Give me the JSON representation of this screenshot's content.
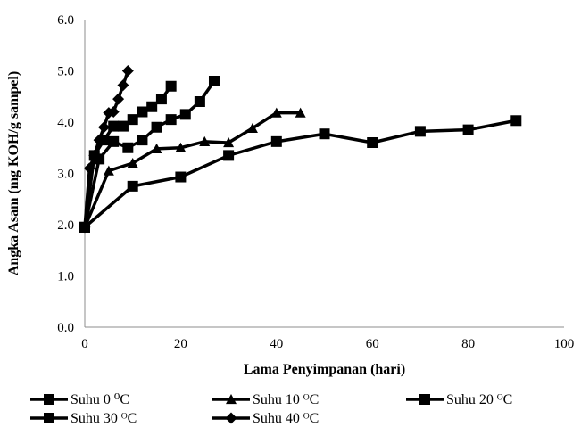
{
  "chart_data": {
    "type": "line",
    "title": "",
    "xlabel": "Lama Penyimpanan (hari)",
    "ylabel": "Angka Asam (mg KOH/g sampel)",
    "xlim": [
      0,
      100
    ],
    "ylim": [
      0,
      6
    ],
    "xticks": [
      "0",
      "20",
      "40",
      "60",
      "80",
      "100"
    ],
    "yticks": [
      "0.0",
      "1.0",
      "2.0",
      "3.0",
      "4.0",
      "5.0",
      "6.0"
    ],
    "grid": false,
    "legend_position": "bottom",
    "line_color": "#000000",
    "series": [
      {
        "name": "Suhu 0 ⁰C",
        "marker": "square",
        "x": [
          0,
          10,
          20,
          30,
          40,
          50,
          60,
          70,
          80,
          90
        ],
        "y": [
          1.95,
          2.75,
          2.93,
          3.35,
          3.62,
          3.77,
          3.6,
          3.82,
          3.85,
          4.03
        ]
      },
      {
        "name": "Suhu 10 ᴼC",
        "marker": "triangle",
        "x": [
          0,
          5,
          10,
          15,
          20,
          25,
          30,
          35,
          40,
          45
        ],
        "y": [
          1.95,
          3.05,
          3.2,
          3.48,
          3.5,
          3.62,
          3.6,
          3.88,
          4.18,
          4.18
        ]
      },
      {
        "name": "Suhu 20 ᴼC",
        "marker": "square",
        "x": [
          0,
          3,
          6,
          9,
          12,
          15,
          18,
          21,
          24,
          27
        ],
        "y": [
          1.95,
          3.28,
          3.62,
          3.5,
          3.65,
          3.9,
          4.05,
          4.15,
          4.4,
          4.8
        ]
      },
      {
        "name": "Suhu 30 ᴼC",
        "marker": "square",
        "x": [
          0,
          2,
          4,
          6,
          8,
          10,
          12,
          14,
          16,
          18
        ],
        "y": [
          1.95,
          3.35,
          3.65,
          3.92,
          3.92,
          4.05,
          4.2,
          4.3,
          4.45,
          4.7
        ]
      },
      {
        "name": "Suhu 40 ᴼC",
        "marker": "diamond",
        "x": [
          0,
          1,
          2,
          3,
          4,
          5,
          6,
          7,
          8,
          9
        ],
        "y": [
          1.95,
          3.1,
          3.35,
          3.65,
          3.9,
          4.18,
          4.2,
          4.45,
          4.72,
          5.0
        ]
      }
    ]
  }
}
